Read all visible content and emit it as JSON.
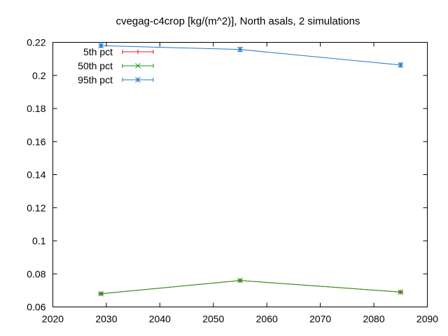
{
  "chart_data": {
    "type": "line",
    "title": "cvegag-c4crop [kg/(m^2)], North asals, 2 simulations",
    "xlabel": "",
    "ylabel": "",
    "xlim": [
      2020,
      2090
    ],
    "ylim": [
      0.06,
      0.22
    ],
    "xticks": [
      2020,
      2030,
      2040,
      2050,
      2060,
      2070,
      2080,
      2090
    ],
    "yticks": [
      0.06,
      0.08,
      0.1,
      0.12,
      0.14,
      0.16,
      0.18,
      0.2,
      0.22
    ],
    "ytick_labels": [
      "0.06",
      "0.08",
      "0.1",
      "0.12",
      "0.14",
      "0.16",
      "0.18",
      "0.2",
      "0.22"
    ],
    "grid": false,
    "legend_position": "top-left",
    "x": [
      2029,
      2055,
      2085
    ],
    "series": [
      {
        "name": "5th pct",
        "color": "#e41a1c",
        "marker": "plus",
        "values": [
          0.068,
          0.076,
          0.069
        ],
        "errors": [
          0.0005,
          0.0005,
          0.0005
        ]
      },
      {
        "name": "50th pct",
        "color": "#1a9a1a",
        "marker": "cross",
        "values": [
          0.068,
          0.076,
          0.069
        ],
        "errors": [
          0.0005,
          0.0005,
          0.0005
        ]
      },
      {
        "name": "95th pct",
        "color": "#1f78c8",
        "marker": "star",
        "values": [
          0.218,
          0.2157,
          0.2063
        ],
        "errors": [
          0.001,
          0.0012,
          0.0012
        ]
      }
    ]
  }
}
